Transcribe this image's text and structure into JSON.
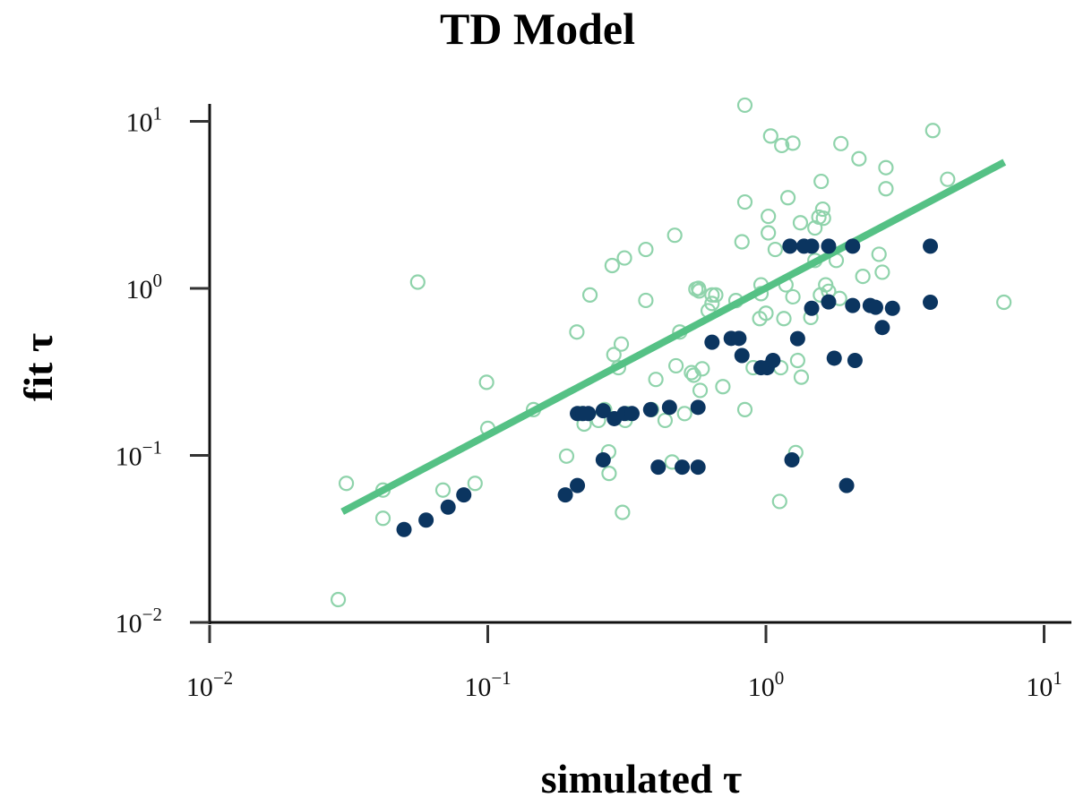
{
  "chart_data": {
    "type": "scatter",
    "title": "TD Model",
    "xlabel": "simulated τ",
    "ylabel": "fit τ",
    "x_scale": "log",
    "y_scale": "log",
    "xlim": [
      0.01,
      12.5
    ],
    "ylim": [
      0.01,
      12.5
    ],
    "x_ticks": [
      0.01,
      0.1,
      1,
      10
    ],
    "y_ticks": [
      0.01,
      0.1,
      1,
      10
    ],
    "tick_labels": [
      {
        "base": "10",
        "exp": "−2"
      },
      {
        "base": "10",
        "exp": "−1"
      },
      {
        "base": "10",
        "exp": "0"
      },
      {
        "base": "10",
        "exp": "1"
      }
    ],
    "grid": false,
    "colors": {
      "open_markers": "#8fd3ab",
      "filled_markers": "#0b3560",
      "fit_line": "#55c185"
    },
    "series": [
      {
        "marker": "open-circle",
        "points": [
          [
            0.029,
            0.0137
          ],
          [
            0.031,
            0.068
          ],
          [
            0.042,
            0.062
          ],
          [
            0.042,
            0.042
          ],
          [
            0.056,
            1.09
          ],
          [
            0.069,
            0.062
          ],
          [
            0.09,
            0.068
          ],
          [
            0.099,
            0.274
          ],
          [
            0.1,
            0.145
          ],
          [
            0.146,
            0.188
          ],
          [
            0.192,
            0.099
          ],
          [
            0.209,
            0.548
          ],
          [
            0.217,
            0.178
          ],
          [
            0.222,
            0.154
          ],
          [
            0.233,
            0.913
          ],
          [
            0.25,
            0.162
          ],
          [
            0.263,
            0.188
          ],
          [
            0.272,
            0.105
          ],
          [
            0.273,
            0.078
          ],
          [
            0.28,
            1.37
          ],
          [
            0.284,
            0.401
          ],
          [
            0.295,
            0.335
          ],
          [
            0.302,
            0.464
          ],
          [
            0.305,
            0.0456
          ],
          [
            0.31,
            1.52
          ],
          [
            0.312,
            0.162
          ],
          [
            0.318,
            0.178
          ],
          [
            0.37,
            1.71
          ],
          [
            0.37,
            0.847
          ],
          [
            0.388,
            0.188
          ],
          [
            0.402,
            0.285
          ],
          [
            0.434,
            0.162
          ],
          [
            0.46,
            0.0913
          ],
          [
            0.47,
            2.08
          ],
          [
            0.475,
            0.344
          ],
          [
            0.49,
            0.548
          ],
          [
            0.51,
            0.178
          ],
          [
            0.54,
            0.313
          ],
          [
            0.55,
            0.302
          ],
          [
            0.56,
            0.99
          ],
          [
            0.572,
            1.0
          ],
          [
            0.575,
            0.965
          ],
          [
            0.58,
            0.245
          ],
          [
            0.59,
            0.33
          ],
          [
            0.62,
            0.735
          ],
          [
            0.64,
            0.812
          ],
          [
            0.64,
            0.913
          ],
          [
            0.66,
            0.913
          ],
          [
            0.7,
            0.258
          ],
          [
            0.78,
            0.845
          ],
          [
            0.82,
            1.9
          ],
          [
            0.84,
            12.5
          ],
          [
            0.84,
            3.29
          ],
          [
            0.84,
            0.188
          ],
          [
            0.9,
            0.335
          ],
          [
            0.95,
            0.659
          ],
          [
            0.96,
            0.93
          ],
          [
            0.96,
            1.05
          ],
          [
            1.0,
            0.71
          ],
          [
            1.02,
            2.7
          ],
          [
            1.02,
            2.15
          ],
          [
            1.04,
            8.17
          ],
          [
            1.08,
            1.71
          ],
          [
            1.12,
            0.053
          ],
          [
            1.13,
            0.335
          ],
          [
            1.14,
            7.17
          ],
          [
            1.16,
            0.659
          ],
          [
            1.18,
            1.05
          ],
          [
            1.2,
            3.49
          ],
          [
            1.25,
            0.89
          ],
          [
            1.25,
            7.4
          ],
          [
            1.28,
            0.104
          ],
          [
            1.3,
            0.37
          ],
          [
            1.33,
            2.47
          ],
          [
            1.34,
            0.294
          ],
          [
            1.45,
            0.67
          ],
          [
            1.5,
            1.47
          ],
          [
            1.5,
            2.3
          ],
          [
            1.55,
            2.67
          ],
          [
            1.57,
            0.913
          ],
          [
            1.58,
            4.37
          ],
          [
            1.6,
            2.98
          ],
          [
            1.61,
            2.63
          ],
          [
            1.64,
            1.05
          ],
          [
            1.68,
            0.96
          ],
          [
            1.79,
            1.47
          ],
          [
            1.84,
            0.87
          ],
          [
            1.86,
            7.36
          ],
          [
            2.16,
            5.97
          ],
          [
            2.23,
            1.18
          ],
          [
            2.55,
            1.6
          ],
          [
            2.62,
            1.25
          ],
          [
            2.7,
            5.28
          ],
          [
            2.7,
            3.95
          ],
          [
            3.98,
            8.81
          ],
          [
            4.5,
            4.5
          ],
          [
            7.17,
            0.826
          ]
        ]
      },
      {
        "marker": "filled-circle",
        "points": [
          [
            0.05,
            0.036
          ],
          [
            0.06,
            0.041
          ],
          [
            0.072,
            0.049
          ],
          [
            0.082,
            0.058
          ],
          [
            0.19,
            0.058
          ],
          [
            0.21,
            0.066
          ],
          [
            0.21,
            0.178
          ],
          [
            0.22,
            0.178
          ],
          [
            0.23,
            0.178
          ],
          [
            0.26,
            0.094
          ],
          [
            0.26,
            0.185
          ],
          [
            0.285,
            0.166
          ],
          [
            0.31,
            0.178
          ],
          [
            0.33,
            0.178
          ],
          [
            0.385,
            0.188
          ],
          [
            0.41,
            0.085
          ],
          [
            0.45,
            0.194
          ],
          [
            0.5,
            0.085
          ],
          [
            0.57,
            0.085
          ],
          [
            0.57,
            0.194
          ],
          [
            0.64,
            0.476
          ],
          [
            0.75,
            0.502
          ],
          [
            0.8,
            0.502
          ],
          [
            0.82,
            0.396
          ],
          [
            0.96,
            0.335
          ],
          [
            1.01,
            0.335
          ],
          [
            1.06,
            0.37
          ],
          [
            1.24,
            0.094
          ],
          [
            1.3,
            0.5
          ],
          [
            1.22,
            1.79
          ],
          [
            1.37,
            1.79
          ],
          [
            1.46,
            1.79
          ],
          [
            1.46,
            0.76
          ],
          [
            1.68,
            1.79
          ],
          [
            1.68,
            0.83
          ],
          [
            1.76,
            0.382
          ],
          [
            1.95,
            0.066
          ],
          [
            2.05,
            1.79
          ],
          [
            2.05,
            0.79
          ],
          [
            2.09,
            0.37
          ],
          [
            2.37,
            0.79
          ],
          [
            2.48,
            0.77
          ],
          [
            2.62,
            0.583
          ],
          [
            2.85,
            0.76
          ],
          [
            3.9,
            1.79
          ],
          [
            3.9,
            0.826
          ]
        ]
      }
    ],
    "fit_line": {
      "x": [
        0.03,
        7.2
      ],
      "y": [
        0.046,
        5.7
      ]
    }
  }
}
